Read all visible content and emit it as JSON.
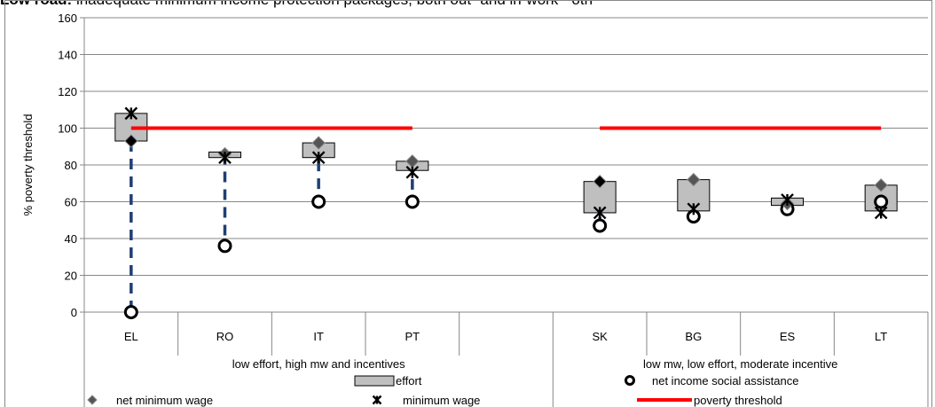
{
  "chart_data": {
    "type": "scatter",
    "title_bold": "Low road:",
    "title_rest": "inadequate minimum income protection packages, both out- and in-work - oth",
    "ylabel": "% poverty threshold",
    "ylim": [
      0,
      160
    ],
    "yticks": [
      0,
      20,
      40,
      60,
      80,
      100,
      120,
      140,
      160
    ],
    "categories": [
      "EL",
      "RO",
      "IT",
      "PT",
      "",
      "SK",
      "BG",
      "ES",
      "LT"
    ],
    "groups": [
      {
        "label": "low effort, high mw and incentives",
        "span": [
          0,
          4
        ]
      },
      {
        "label": "low mw, low effort, moderate incentive",
        "span": [
          5,
          8
        ]
      }
    ],
    "series": [
      {
        "name": "net minimum wage",
        "values": [
          93,
          86,
          92,
          82,
          null,
          71,
          72,
          59,
          69
        ]
      },
      {
        "name": "minimum wage",
        "values": [
          108,
          84,
          84,
          76,
          null,
          54,
          56,
          61,
          54
        ]
      },
      {
        "name": "net income social assistance",
        "values": [
          0,
          36,
          60,
          60,
          null,
          47,
          52,
          56,
          60
        ]
      },
      {
        "name": "effort",
        "values": [
          [
            93,
            108
          ],
          [
            84,
            87
          ],
          [
            84,
            92
          ],
          [
            77,
            82
          ],
          null,
          [
            54,
            71
          ],
          [
            55,
            72
          ],
          [
            58,
            62
          ],
          [
            55,
            69
          ]
        ]
      },
      {
        "name": "poverty threshold",
        "segments": [
          {
            "from": 0,
            "to": 3,
            "value": 100
          },
          {
            "from": 5,
            "to": 8,
            "value": 100
          }
        ]
      }
    ],
    "legend": [
      {
        "key": "effort",
        "label": "effort"
      },
      {
        "key": "sa",
        "label": "net income social assistance"
      },
      {
        "key": "nmw",
        "label": "net minimum wage"
      },
      {
        "key": "mw",
        "label": "minimum wage"
      },
      {
        "key": "pov",
        "label": "poverty threshold"
      }
    ],
    "colors": {
      "threshold": "#ff0000",
      "connector": "#1f3f74",
      "effort_fill": "#bfbfbf",
      "grid": "#878787"
    },
    "legend_position": "bottom",
    "grid": true
  }
}
